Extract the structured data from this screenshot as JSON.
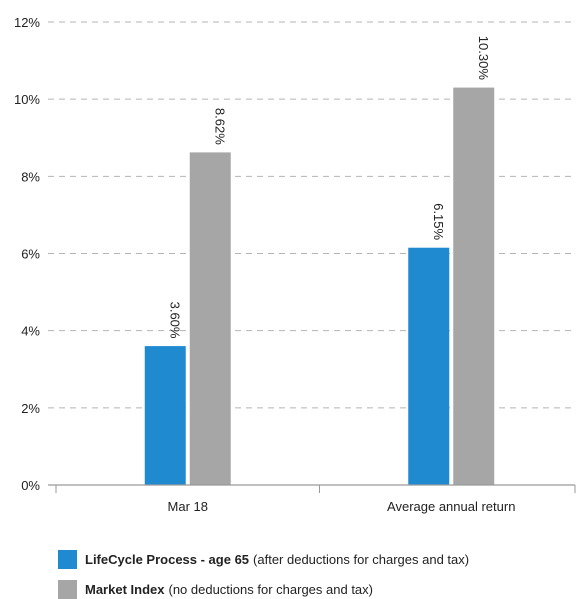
{
  "chart_data": {
    "type": "bar",
    "categories": [
      "Mar 18",
      "Average annual return"
    ],
    "series": [
      {
        "name": "LifeCycle Process - age 65",
        "values": [
          3.6,
          6.15
        ],
        "labels": [
          "3.60%",
          "6.15%"
        ],
        "color": "#1f8ad0"
      },
      {
        "name": "Market Index",
        "values": [
          8.62,
          10.3
        ],
        "labels": [
          "8.62%",
          "10.30%"
        ],
        "color": "#a6a6a6"
      }
    ],
    "yticks": [
      "0%",
      "2%",
      "4%",
      "6%",
      "8%",
      "10%",
      "12%"
    ],
    "ylim": [
      0,
      12
    ],
    "grid": true,
    "legend_position": "bottom-left"
  },
  "legend": [
    {
      "name": "LifeCycle Process - age 65",
      "note": "(after deductions for charges and tax)",
      "color": "#1f8ad0"
    },
    {
      "name": "Market Index",
      "note": "(no deductions for charges and tax)",
      "color": "#a6a6a6"
    }
  ]
}
